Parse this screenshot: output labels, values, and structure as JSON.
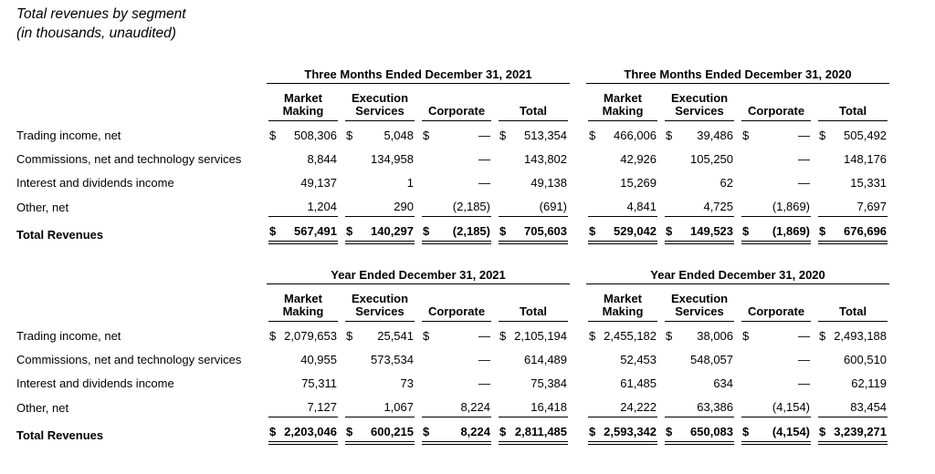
{
  "title": {
    "line1": "Total revenues by segment",
    "line2": "(in thousands, unaudited)"
  },
  "tables": [
    {
      "name": "three-months",
      "periods": [
        "Three Months Ended December 31, 2021",
        "Three Months Ended December 31, 2020"
      ],
      "columns": [
        "Market Making",
        "Execution Services",
        "Corporate",
        "Total"
      ],
      "rows": [
        {
          "label": "Trading income, net",
          "style": "normal",
          "cells": [
            [
              "$",
              "508,306"
            ],
            [
              "$",
              "5,048"
            ],
            [
              "$",
              "—"
            ],
            [
              "$",
              "513,354"
            ],
            [
              "$",
              "466,006"
            ],
            [
              "$",
              "39,486"
            ],
            [
              "$",
              "—"
            ],
            [
              "$",
              "505,492"
            ]
          ]
        },
        {
          "label": "Commissions, net and technology services",
          "style": "normal",
          "cells": [
            [
              "",
              "8,844"
            ],
            [
              "",
              "134,958"
            ],
            [
              "",
              "—"
            ],
            [
              "",
              "143,802"
            ],
            [
              "",
              "42,926"
            ],
            [
              "",
              "105,250"
            ],
            [
              "",
              "—"
            ],
            [
              "",
              "148,176"
            ]
          ]
        },
        {
          "label": "Interest and dividends income",
          "style": "normal",
          "cells": [
            [
              "",
              "49,137"
            ],
            [
              "",
              "1"
            ],
            [
              "",
              "—"
            ],
            [
              "",
              "49,138"
            ],
            [
              "",
              "15,269"
            ],
            [
              "",
              "62"
            ],
            [
              "",
              "—"
            ],
            [
              "",
              "15,331"
            ]
          ]
        },
        {
          "label": "Other, net",
          "style": "rule",
          "cells": [
            [
              "",
              "1,204"
            ],
            [
              "",
              "290"
            ],
            [
              "",
              "(2,185)"
            ],
            [
              "",
              "(691)"
            ],
            [
              "",
              "4,841"
            ],
            [
              "",
              "4,725"
            ],
            [
              "",
              "(1,869)"
            ],
            [
              "",
              "7,697"
            ]
          ]
        },
        {
          "label": "Total Revenues",
          "style": "total",
          "cells": [
            [
              "$",
              "567,491"
            ],
            [
              "$",
              "140,297"
            ],
            [
              "$",
              "(2,185)"
            ],
            [
              "$",
              "705,603"
            ],
            [
              "$",
              "529,042"
            ],
            [
              "$",
              "149,523"
            ],
            [
              "$",
              "(1,869)"
            ],
            [
              "$",
              "676,696"
            ]
          ]
        }
      ]
    },
    {
      "name": "year",
      "periods": [
        "Year Ended December 31, 2021",
        "Year Ended December 31, 2020"
      ],
      "columns": [
        "Market Making",
        "Execution Services",
        "Corporate",
        "Total"
      ],
      "rows": [
        {
          "label": "Trading income, net",
          "style": "normal",
          "cells": [
            [
              "$",
              "2,079,653"
            ],
            [
              "$",
              "25,541"
            ],
            [
              "$",
              "—"
            ],
            [
              "$",
              "2,105,194"
            ],
            [
              "$",
              "2,455,182"
            ],
            [
              "$",
              "38,006"
            ],
            [
              "$",
              "—"
            ],
            [
              "$",
              "2,493,188"
            ]
          ]
        },
        {
          "label": "Commissions, net and technology services",
          "style": "normal",
          "cells": [
            [
              "",
              "40,955"
            ],
            [
              "",
              "573,534"
            ],
            [
              "",
              "—"
            ],
            [
              "",
              "614,489"
            ],
            [
              "",
              "52,453"
            ],
            [
              "",
              "548,057"
            ],
            [
              "",
              "—"
            ],
            [
              "",
              "600,510"
            ]
          ]
        },
        {
          "label": "Interest and dividends income",
          "style": "normal",
          "cells": [
            [
              "",
              "75,311"
            ],
            [
              "",
              "73"
            ],
            [
              "",
              "—"
            ],
            [
              "",
              "75,384"
            ],
            [
              "",
              "61,485"
            ],
            [
              "",
              "634"
            ],
            [
              "",
              "—"
            ],
            [
              "",
              "62,119"
            ]
          ]
        },
        {
          "label": "Other, net",
          "style": "rule",
          "cells": [
            [
              "",
              "7,127"
            ],
            [
              "",
              "1,067"
            ],
            [
              "",
              "8,224"
            ],
            [
              "",
              "16,418"
            ],
            [
              "",
              "24,222"
            ],
            [
              "",
              "63,386"
            ],
            [
              "",
              "(4,154)"
            ],
            [
              "",
              "83,454"
            ]
          ]
        },
        {
          "label": "Total Revenues",
          "style": "total",
          "cells": [
            [
              "$",
              "2,203,046"
            ],
            [
              "$",
              "600,215"
            ],
            [
              "$",
              "8,224"
            ],
            [
              "$",
              "2,811,485"
            ],
            [
              "$",
              "2,593,342"
            ],
            [
              "$",
              "650,083"
            ],
            [
              "$",
              "(4,154)"
            ],
            [
              "$",
              "3,239,271"
            ]
          ]
        }
      ]
    }
  ]
}
